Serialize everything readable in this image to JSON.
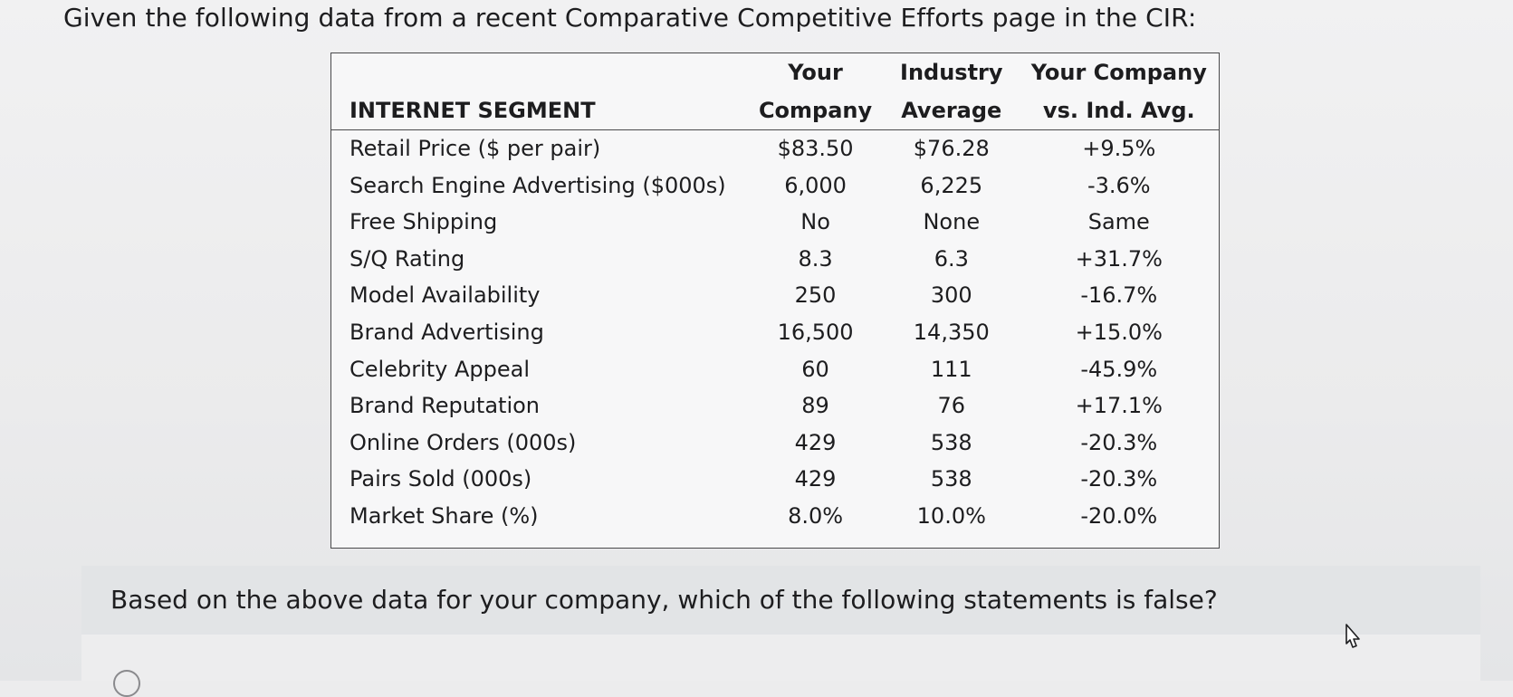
{
  "question": {
    "prompt": "Given the following data from a recent Comparative Competitive Efforts page in the CIR:",
    "followup": "Based on the above data for your company, which of the following statements is false?"
  },
  "table": {
    "header_row1": [
      "",
      "Your",
      "Industry",
      "Your Company"
    ],
    "header_row2": [
      "INTERNET SEGMENT",
      "Company",
      "Average",
      "vs. Ind. Avg."
    ],
    "rows": [
      [
        "Retail Price ($ per pair)",
        "$83.50",
        "$76.28",
        "+9.5%"
      ],
      [
        "Search Engine Advertising ($000s)",
        "6,000",
        "6,225",
        "-3.6%"
      ],
      [
        "Free Shipping",
        "No",
        "None",
        "Same"
      ],
      [
        "S/Q Rating",
        "8.3",
        "6.3",
        "+31.7%"
      ],
      [
        "Model Availability",
        "250",
        "300",
        "-16.7%"
      ],
      [
        "Brand Advertising",
        "16,500",
        "14,350",
        "+15.0%"
      ],
      [
        "Celebrity Appeal",
        "60",
        "111",
        "-45.9%"
      ],
      [
        "Brand Reputation",
        "89",
        "76",
        "+17.1%"
      ],
      [
        "Online Orders (000s)",
        "429",
        "538",
        "-20.3%"
      ],
      [
        "Pairs Sold (000s)",
        "429",
        "538",
        "-20.3%"
      ],
      [
        "Market Share (%)",
        "8.0%",
        "10.0%",
        "-20.0%"
      ]
    ]
  },
  "icons": {
    "cursor": "pointer-cursor-icon",
    "radio": "radio-option-icon"
  }
}
